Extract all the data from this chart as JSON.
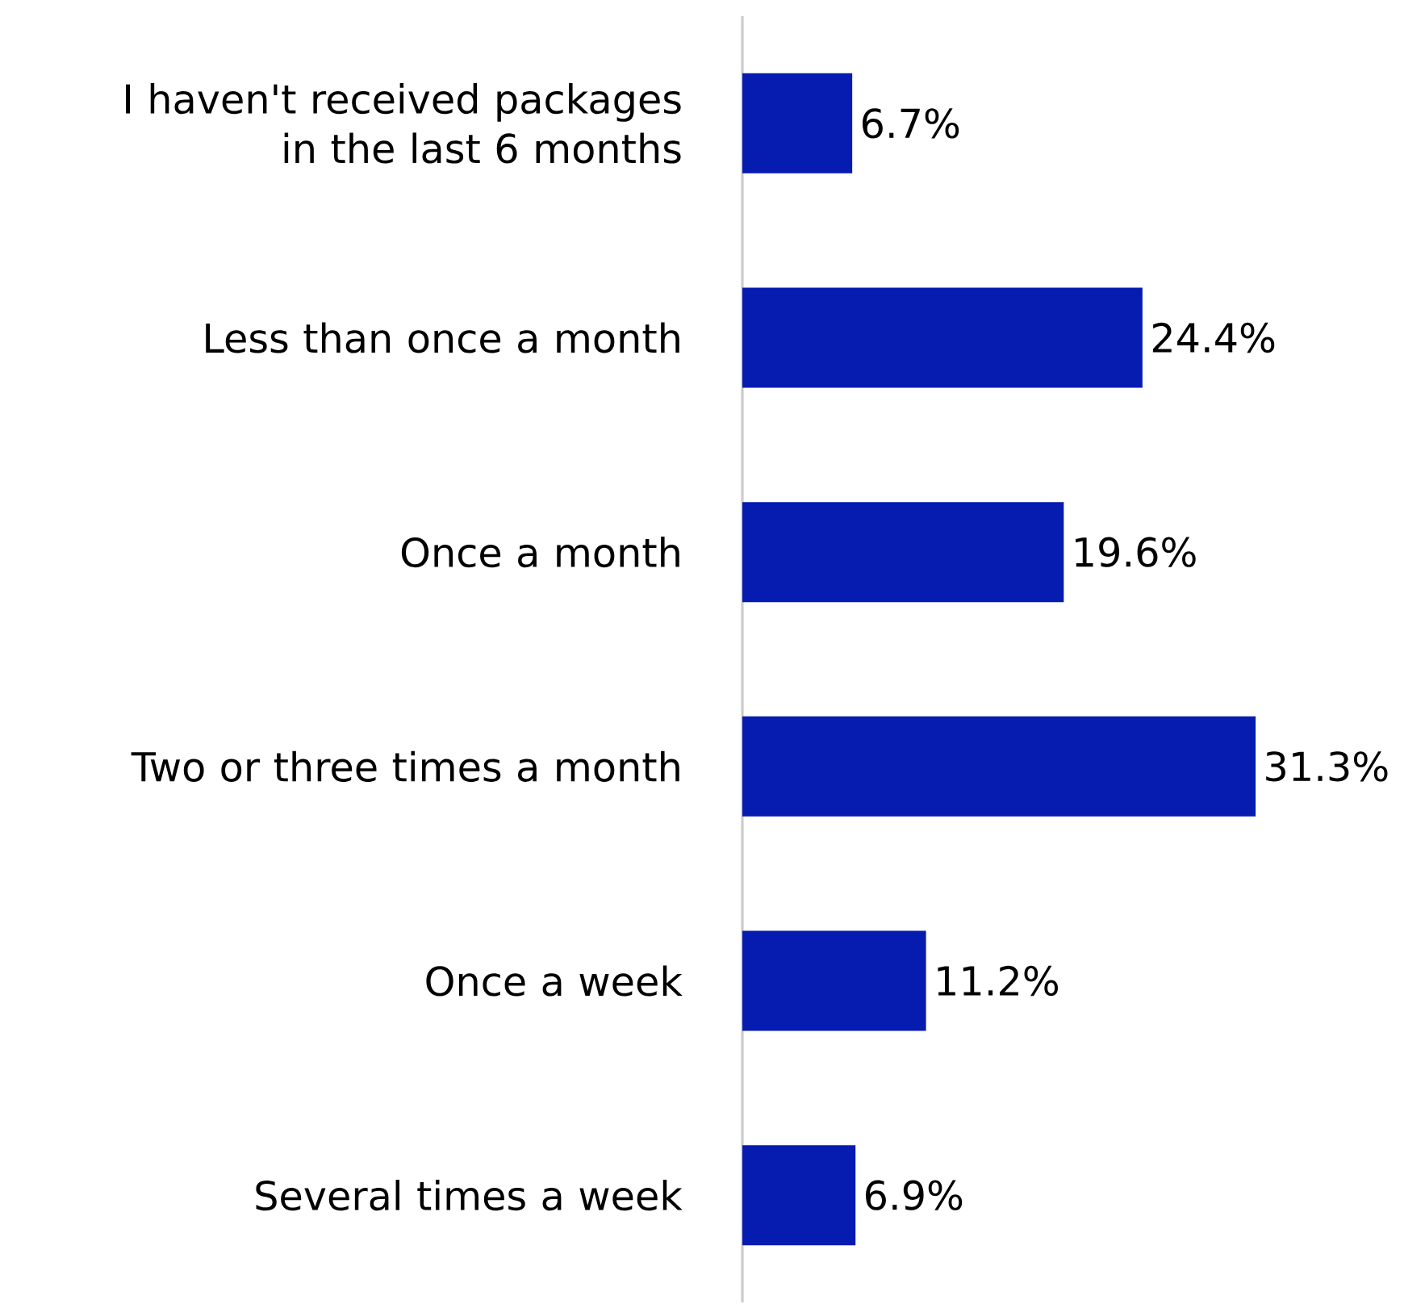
{
  "chart_data": {
    "type": "bar",
    "orientation": "horizontal",
    "categories": [
      "I haven't received packages in the last 6 months",
      "Less than once a month",
      "Once a month",
      "Two or three times a month",
      "Once a week",
      "Several times a week"
    ],
    "values": [
      6.7,
      24.4,
      19.6,
      31.3,
      11.2,
      6.9
    ],
    "value_labels": [
      "6.7%",
      "24.4%",
      "19.6%",
      "31.3%",
      "11.2%",
      "6.9%"
    ],
    "color": "#061bb0"
  }
}
